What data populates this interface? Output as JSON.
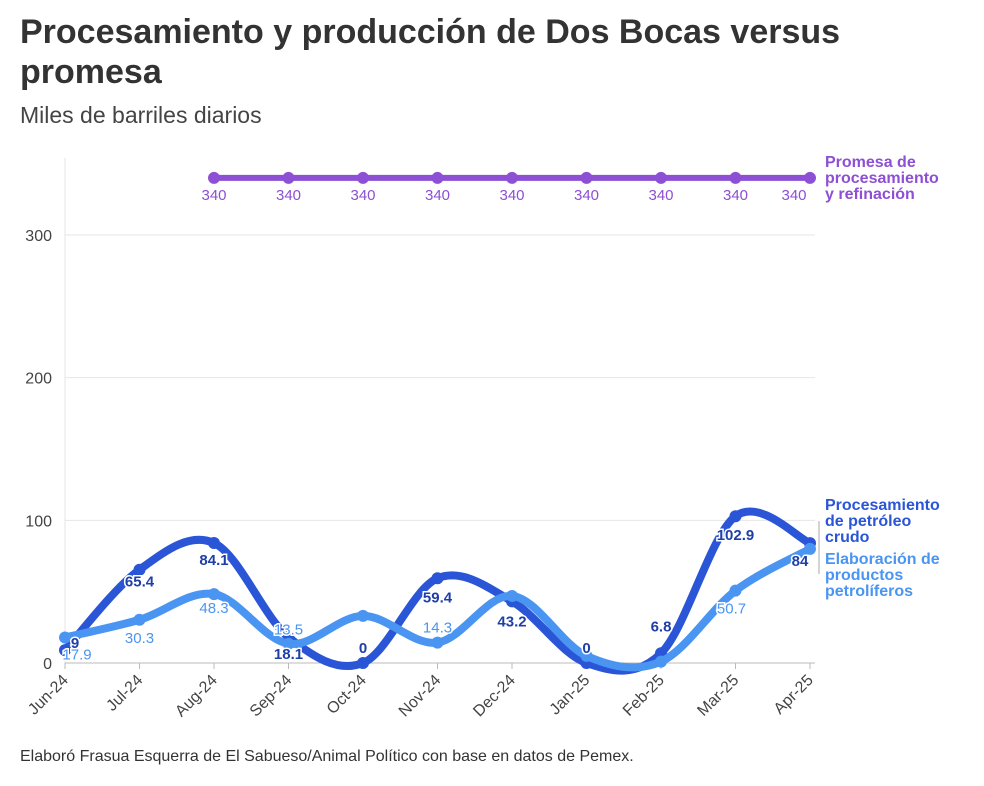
{
  "title": "Procesamiento y producción de Dos Bocas versus promesa",
  "subtitle": "Miles de barriles diarios",
  "note": "Elaboró Frasua Esquerra de El Sabueso/Animal Político con base en datos de Pemex.",
  "colors": {
    "promesa": "#8d4fd3",
    "crudo": "#2a55d6",
    "productos": "#4a95f2",
    "grid": "#e6e6e6"
  },
  "chart_data": {
    "type": "line",
    "title": "Procesamiento y producción de Dos Bocas versus promesa",
    "ylabel": "",
    "xlabel": "",
    "ylim": [
      0,
      350
    ],
    "yticks": [
      0,
      100,
      200,
      300
    ],
    "grid": true,
    "categories": [
      "Jun-24",
      "Jul-24",
      "Aug-24",
      "Sep-24",
      "Oct-24",
      "Nov-24",
      "Dec-24",
      "Jan-25",
      "Feb-25",
      "Mar-25",
      "Apr-25"
    ],
    "series": [
      {
        "name": "Promesa de procesamiento y refinación",
        "name_lines": [
          "Promesa de",
          "procesamiento",
          "y refinación"
        ],
        "key": "promesa",
        "start_index": 2,
        "values": [
          null,
          null,
          340,
          340,
          340,
          340,
          340,
          340,
          340,
          340,
          340
        ]
      },
      {
        "name": "Procesamiento de petróleo crudo",
        "name_lines": [
          "Procesamiento",
          "de petróleo",
          "crudo"
        ],
        "key": "crudo",
        "values": [
          9,
          65.4,
          84.1,
          18.1,
          0,
          59.4,
          43.2,
          0,
          6.8,
          102.9,
          84
        ]
      },
      {
        "name": "Elaboración de productos petrolíferos",
        "name_lines": [
          "Elaboración de",
          "productos",
          "petrolíferos"
        ],
        "key": "productos",
        "values": [
          17.9,
          30.3,
          48.3,
          13.5,
          33,
          14.3,
          47,
          5,
          1,
          50.7,
          80
        ],
        "labels": [
          "17.9",
          "30.3",
          "48.3",
          "13.5",
          "",
          "14.3",
          "",
          "",
          "",
          "50.7",
          ""
        ]
      }
    ],
    "crudo_labels": [
      "9",
      "65.4",
      "84.1",
      "18.1",
      "0",
      "59.4",
      "43.2",
      "0",
      "6.8",
      "102.9",
      "84"
    ]
  }
}
